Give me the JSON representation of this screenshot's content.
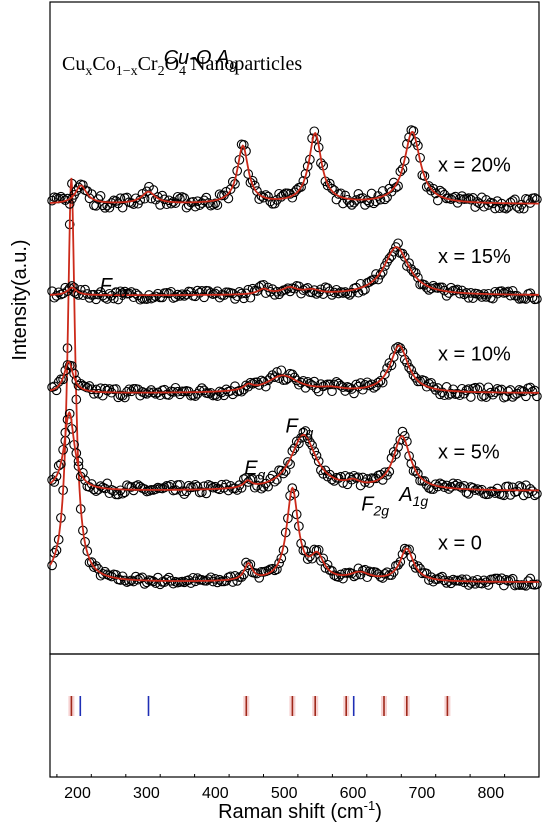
{
  "chart_data": {
    "type": "line",
    "title_parts": {
      "base": "Cu",
      "s1": "x",
      "mid1": "Co",
      "s2": "1−x",
      "mid2": "Cr",
      "s3": "2",
      "mid3": "O",
      "s4": "4",
      "tail": " Nanoparticles"
    },
    "xlabel": "Raman shift (cm",
    "xlabel_sup": "-1",
    "xlabel_end": ")",
    "ylabel": "Intensity(a.u.)",
    "xlim": [
      160,
      870
    ],
    "xticks": [
      200,
      300,
      400,
      500,
      600,
      700,
      800
    ],
    "colors": {
      "marker": "#000000",
      "fit": "#cc2a1a",
      "bar_red": "#a0281a",
      "bar_blue": "#1f2fb5",
      "bar_shade": "#f6d2d2"
    },
    "series": [
      {
        "name": "x = 0",
        "baseline": 0.11,
        "noise": 0.006,
        "peaks": [
          [
            191,
            6.5,
            0.62
          ],
          [
            448,
            7,
            0.025
          ],
          [
            512,
            10,
            0.14
          ],
          [
            548,
            12,
            0.035
          ],
          [
            610,
            18,
            0.012
          ],
          [
            678,
            12,
            0.05
          ]
        ]
      },
      {
        "name": "x = 5%",
        "baseline": 0.25,
        "noise": 0.008,
        "peaks": [
          [
            188,
            9,
            0.12
          ],
          [
            447,
            7,
            0.01
          ],
          [
            528,
            22,
            0.085
          ],
          [
            600,
            12,
            0.008
          ],
          [
            671,
            15,
            0.082
          ]
        ]
      },
      {
        "name": "x = 10%",
        "baseline": 0.4,
        "noise": 0.008,
        "peaks": [
          [
            187,
            8,
            0.048
          ],
          [
            448,
            8,
            0.008
          ],
          [
            498,
            28,
            0.026
          ],
          [
            568,
            22,
            0.005
          ],
          [
            667,
            16,
            0.072
          ]
        ]
      },
      {
        "name": "x = 15%",
        "baseline": 0.55,
        "noise": 0.007,
        "peaks": [
          [
            192,
            8,
            0.012
          ],
          [
            470,
            10,
            0.008
          ],
          [
            508,
            14,
            0.01
          ],
          [
            540,
            14,
            0.006
          ],
          [
            663,
            22,
            0.074
          ]
        ]
      },
      {
        "name": "x = 20%",
        "baseline": 0.69,
        "noise": 0.009,
        "peaks": [
          [
            205,
            10,
            0.028
          ],
          [
            303,
            12,
            0.018
          ],
          [
            440,
            9.5,
            0.088
          ],
          [
            545,
            11,
            0.107
          ],
          [
            686,
            14,
            0.11
          ]
        ]
      }
    ],
    "peak_labels": [
      {
        "text": "F",
        "sub": "2g",
        "x": 232,
        "y": 0.555
      },
      {
        "text": "E",
        "sub": "g",
        "x": 442,
        "y": 0.275
      },
      {
        "text": "F",
        "sub": "2g",
        "x": 502,
        "y": 0.34
      },
      {
        "text": "F",
        "sub": "2g",
        "x": 612,
        "y": 0.22
      },
      {
        "text": "A",
        "sub": "1g",
        "x": 667,
        "y": 0.235
      },
      {
        "text": "Cu-O A",
        "sub": "g",
        "x": 325,
        "y": 0.905
      }
    ],
    "reference_lines": [
      {
        "x": 191,
        "color": "red"
      },
      {
        "x": 204,
        "color": "blue"
      },
      {
        "x": 303,
        "color": "blue"
      },
      {
        "x": 445,
        "color": "red"
      },
      {
        "x": 512,
        "color": "red"
      },
      {
        "x": 545,
        "color": "red"
      },
      {
        "x": 590,
        "color": "red"
      },
      {
        "x": 601,
        "color": "blue"
      },
      {
        "x": 645,
        "color": "red"
      },
      {
        "x": 678,
        "color": "red"
      },
      {
        "x": 737,
        "color": "red"
      }
    ]
  }
}
